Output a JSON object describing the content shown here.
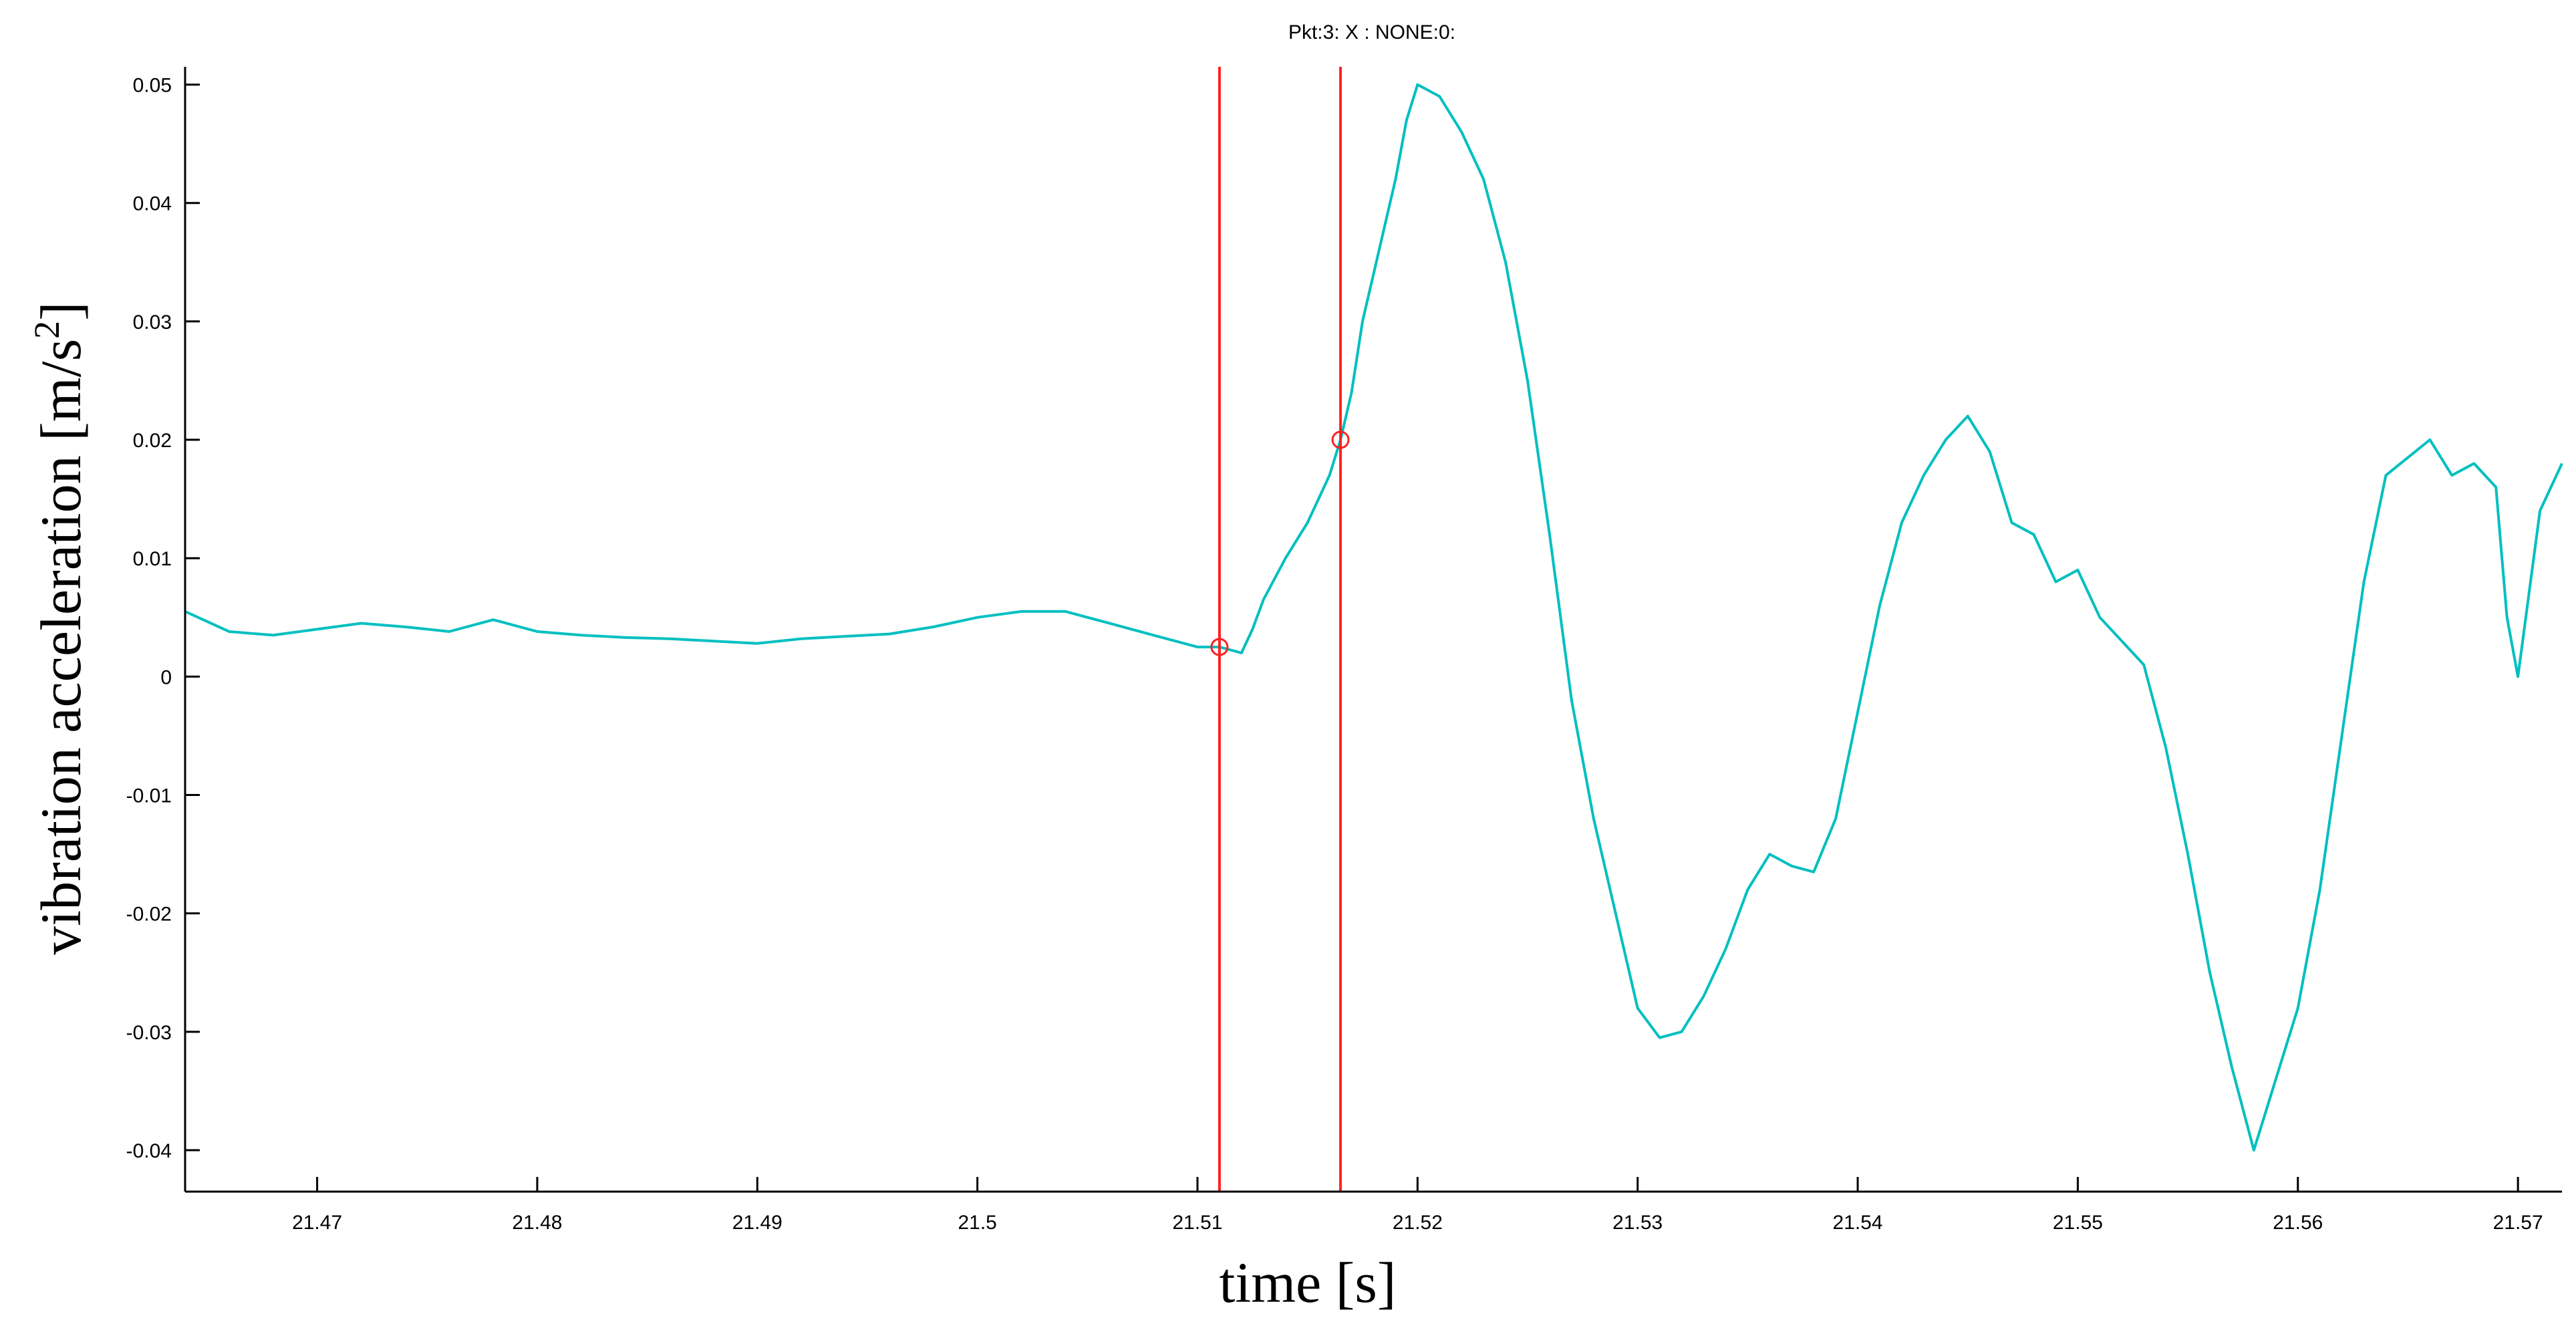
{
  "chart_data": {
    "type": "line",
    "title": "Pkt:3:  X : NONE:0:",
    "xlabel": "time [s]",
    "ylabel_main": "vibration acceleration [m/s",
    "ylabel_sup": "2",
    "ylabel_end": "]",
    "xlim": [
      21.464,
      21.572
    ],
    "ylim": [
      -0.0435,
      0.0515
    ],
    "xticks": [
      21.47,
      21.48,
      21.49,
      21.5,
      21.51,
      21.52,
      21.53,
      21.54,
      21.55,
      21.56,
      21.57
    ],
    "xtick_labels": [
      "21.47",
      "21.48",
      "21.49",
      "21.5",
      "21.51",
      "21.52",
      "21.53",
      "21.54",
      "21.55",
      "21.56",
      "21.57"
    ],
    "yticks": [
      0.05,
      0.04,
      0.03,
      0.02,
      0.01,
      0,
      -0.01,
      -0.02,
      -0.03,
      -0.04
    ],
    "ytick_labels": [
      "0.05",
      "0.04",
      "0.03",
      "0.02",
      "0.01",
      "0",
      "-0.01",
      "-0.02",
      "-0.03",
      "-0.04"
    ],
    "grid": false,
    "series": [
      {
        "color": "#00bfc0",
        "x": [
          21.464,
          21.466,
          21.468,
          21.47,
          21.472,
          21.474,
          21.476,
          21.478,
          21.48,
          21.482,
          21.484,
          21.486,
          21.488,
          21.49,
          21.492,
          21.494,
          21.496,
          21.498,
          21.5,
          21.502,
          21.504,
          21.506,
          21.508,
          21.51,
          21.511,
          21.512,
          21.5125,
          21.513,
          21.514,
          21.515,
          21.516,
          21.5165,
          21.517,
          21.5175,
          21.518,
          21.519,
          21.5195,
          21.52,
          21.521,
          21.522,
          21.523,
          21.524,
          21.525,
          21.526,
          21.527,
          21.528,
          21.529,
          21.53,
          21.531,
          21.532,
          21.533,
          21.534,
          21.535,
          21.536,
          21.537,
          21.538,
          21.539,
          21.54,
          21.541,
          21.542,
          21.543,
          21.544,
          21.545,
          21.546,
          21.547,
          21.548,
          21.549,
          21.55,
          21.551,
          21.552,
          21.553,
          21.554,
          21.555,
          21.556,
          21.557,
          21.558,
          21.559,
          21.56,
          21.561,
          21.562,
          21.563,
          21.564,
          21.565,
          21.566,
          21.567,
          21.568,
          21.569,
          21.5695,
          21.57,
          21.571,
          21.572
        ],
        "y": [
          0.0055,
          0.0038,
          0.0035,
          0.004,
          0.0045,
          0.0042,
          0.0038,
          0.0048,
          0.0038,
          0.0035,
          0.0033,
          0.0032,
          0.003,
          0.0028,
          0.0032,
          0.0034,
          0.0036,
          0.0042,
          0.005,
          0.0055,
          0.0055,
          0.0045,
          0.0035,
          0.0025,
          0.0025,
          0.002,
          0.004,
          0.0065,
          0.01,
          0.013,
          0.017,
          0.02,
          0.024,
          0.03,
          0.034,
          0.042,
          0.047,
          0.05,
          0.049,
          0.046,
          0.042,
          0.035,
          0.025,
          0.012,
          -0.002,
          -0.012,
          -0.02,
          -0.028,
          -0.0305,
          -0.03,
          -0.027,
          -0.023,
          -0.018,
          -0.015,
          -0.016,
          -0.0165,
          -0.012,
          -0.003,
          0.006,
          0.013,
          0.017,
          0.02,
          0.022,
          0.019,
          0.013,
          0.012,
          0.008,
          0.009,
          0.005,
          0.003,
          0.001,
          -0.006,
          -0.015,
          -0.025,
          -0.033,
          -0.04,
          -0.034,
          -0.028,
          -0.018,
          -0.005,
          0.008,
          0.017,
          0.0185,
          0.02,
          0.017,
          0.018,
          0.016,
          0.005,
          0.0,
          0.014,
          0.018
        ]
      }
    ],
    "markers": [
      {
        "x": 21.511,
        "y": 0.0025,
        "color": "#ff2020"
      },
      {
        "x": 21.5165,
        "y": 0.02,
        "color": "#ff2020"
      }
    ],
    "vlines": [
      {
        "x": 21.511,
        "color": "#ff2020"
      },
      {
        "x": 21.5165,
        "color": "#ff2020"
      }
    ]
  }
}
